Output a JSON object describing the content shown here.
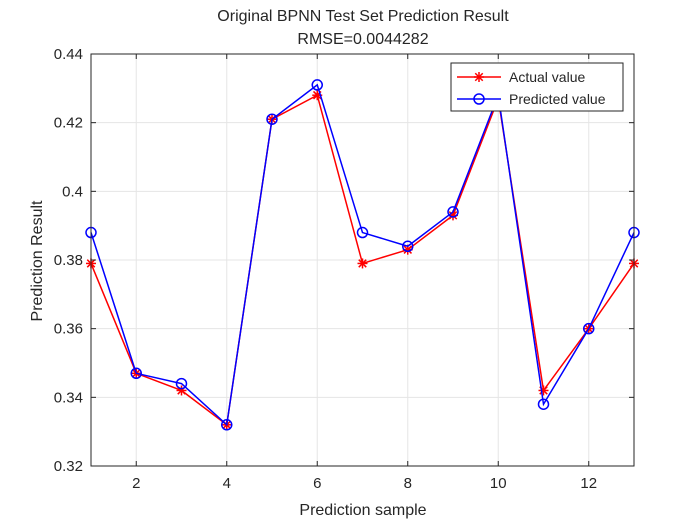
{
  "chart_data": {
    "type": "line",
    "title": "Original BPNN Test Set Prediction Result",
    "subtitle": "RMSE=0.0044282",
    "xlabel": "Prediction sample",
    "ylabel": "Prediction Result",
    "xlim": [
      1,
      13
    ],
    "ylim": [
      0.32,
      0.44
    ],
    "x_ticks": [
      2,
      4,
      6,
      8,
      10,
      12
    ],
    "y_ticks": [
      0.32,
      0.34,
      0.36,
      0.38,
      0.4,
      0.42,
      0.44
    ],
    "y_tick_labels": [
      "0.32",
      "0.34",
      "0.36",
      "0.38",
      "0.4",
      "0.42",
      "0.44"
    ],
    "grid": true,
    "legend_position": "top-right",
    "x": [
      1,
      2,
      3,
      4,
      5,
      6,
      7,
      8,
      9,
      10,
      11,
      12,
      13
    ],
    "series": [
      {
        "name": "Actual value",
        "color": "#ff0000",
        "marker": "asterisk",
        "values": [
          0.379,
          0.347,
          0.342,
          0.332,
          0.421,
          0.428,
          0.379,
          0.383,
          0.393,
          0.427,
          0.342,
          0.36,
          0.379
        ]
      },
      {
        "name": "Predicted value",
        "color": "#0000ff",
        "marker": "circle",
        "values": [
          0.388,
          0.347,
          0.344,
          0.332,
          0.421,
          0.431,
          0.388,
          0.384,
          0.394,
          0.428,
          0.338,
          0.36,
          0.388
        ]
      }
    ]
  }
}
